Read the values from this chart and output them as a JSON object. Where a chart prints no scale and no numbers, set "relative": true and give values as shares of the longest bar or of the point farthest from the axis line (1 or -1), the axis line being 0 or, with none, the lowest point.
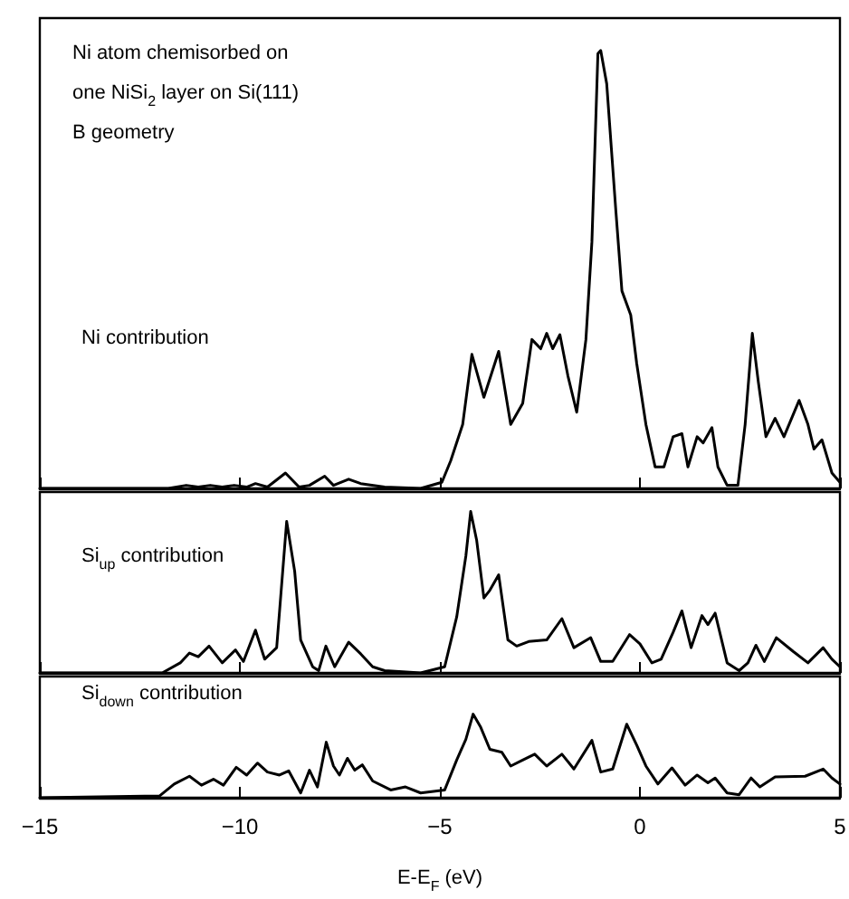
{
  "chart_data": [
    {
      "type": "line",
      "relative": true,
      "xlim": [
        -15,
        5
      ],
      "xticks": [
        -15,
        -10,
        -5,
        0,
        5
      ],
      "tick_labels": false,
      "grid": false,
      "legend": false,
      "marker": "none",
      "line_style": "solid",
      "annotations": [
        "Ni atom chemisorbed on",
        "one NiSi$_{2}$ layer on Si(111)",
        "B geometry"
      ],
      "series": [
        {
          "name": "Ni contribution",
          "color": "#000000",
          "x": [
            -15,
            -11.79,
            -11.34,
            -11.04,
            -10.74,
            -10.44,
            -10.14,
            -9.83,
            -9.61,
            -9.31,
            -8.86,
            -8.52,
            -8.26,
            -7.88,
            -7.66,
            -7.28,
            -6.98,
            -6.38,
            -5.48,
            -4.95,
            -4.73,
            -4.43,
            -4.2,
            -3.9,
            -3.53,
            -3.23,
            -2.93,
            -2.7,
            -2.48,
            -2.33,
            -2.18,
            -2.0,
            -1.8,
            -1.58,
            -1.35,
            -1.2,
            -1.05,
            -0.98,
            -0.83,
            -0.6,
            -0.45,
            -0.23,
            -0.08,
            0.15,
            0.38,
            0.6,
            0.83,
            1.05,
            1.2,
            1.43,
            1.58,
            1.8,
            1.95,
            2.18,
            2.45,
            2.63,
            2.81,
            2.96,
            3.15,
            3.38,
            3.6,
            3.98,
            4.2,
            4.35,
            4.55,
            4.8,
            5.0
          ],
          "values": [
            0,
            0,
            0.007,
            0.003,
            0.007,
            0.003,
            0.007,
            0.003,
            0.011,
            0.003,
            0.035,
            0.003,
            0.007,
            0.028,
            0.007,
            0.021,
            0.011,
            0.003,
            0,
            0.014,
            0.063,
            0.146,
            0.306,
            0.208,
            0.313,
            0.146,
            0.194,
            0.34,
            0.319,
            0.354,
            0.319,
            0.351,
            0.257,
            0.174,
            0.34,
            0.563,
            0.993,
            1,
            0.924,
            0.632,
            0.451,
            0.396,
            0.285,
            0.146,
            0.049,
            0.049,
            0.118,
            0.125,
            0.049,
            0.118,
            0.104,
            0.139,
            0.049,
            0.007,
            0.007,
            0.146,
            0.354,
            0.243,
            0.118,
            0.16,
            0.118,
            0.201,
            0.146,
            0.09,
            0.111,
            0.035,
            0.014
          ]
        }
      ]
    },
    {
      "type": "line",
      "relative": true,
      "xlim": [
        -15,
        5
      ],
      "xticks": [
        -15,
        -10,
        -5,
        0,
        5
      ],
      "tick_labels": false,
      "grid": false,
      "legend": false,
      "marker": "none",
      "line_style": "solid",
      "series": [
        {
          "name": "Si$_{up}$ contribution",
          "color": "#000000",
          "x": [
            -15,
            -11.94,
            -11.49,
            -11.26,
            -11.04,
            -10.77,
            -10.44,
            -10.11,
            -9.91,
            -9.61,
            -9.38,
            -9.08,
            -8.83,
            -8.63,
            -8.48,
            -8.18,
            -8.03,
            -7.85,
            -7.63,
            -7.28,
            -6.98,
            -6.68,
            -6.38,
            -5.48,
            -4.88,
            -4.58,
            -4.35,
            -4.23,
            -4.08,
            -3.9,
            -3.75,
            -3.53,
            -3.3,
            -3.08,
            -2.78,
            -2.33,
            -1.95,
            -1.65,
            -1.23,
            -0.98,
            -0.68,
            -0.26,
            0.0,
            0.3,
            0.53,
            0.83,
            1.05,
            1.28,
            1.55,
            1.7,
            1.88,
            2.18,
            2.48,
            2.7,
            2.9,
            3.11,
            3.41,
            3.83,
            4.2,
            4.58,
            4.8,
            5.0
          ],
          "values": [
            0,
            0,
            0.062,
            0.123,
            0.1,
            0.166,
            0.062,
            0.142,
            0.071,
            0.265,
            0.085,
            0.156,
            0.938,
            0.63,
            0.204,
            0.038,
            0.014,
            0.166,
            0.038,
            0.19,
            0.118,
            0.038,
            0.014,
            0,
            0.038,
            0.346,
            0.725,
            1,
            0.82,
            0.464,
            0.512,
            0.607,
            0.204,
            0.166,
            0.194,
            0.204,
            0.336,
            0.156,
            0.218,
            0.071,
            0.071,
            0.237,
            0.18,
            0.062,
            0.085,
            0.251,
            0.384,
            0.156,
            0.355,
            0.299,
            0.37,
            0.062,
            0.014,
            0.062,
            0.171,
            0.071,
            0.218,
            0.133,
            0.062,
            0.156,
            0.085,
            0.038
          ]
        }
      ]
    },
    {
      "type": "line",
      "relative": true,
      "xlim": [
        -15,
        5
      ],
      "xticks": [
        {
          "value": -15,
          "label": "−15"
        },
        {
          "value": -10,
          "label": "−10"
        },
        {
          "value": -5,
          "label": "−5"
        },
        0,
        5
      ],
      "tick_labels": "x",
      "grid": false,
      "legend": false,
      "marker": "none",
      "line_style": "solid",
      "xlabel": "E-E$_{F}$ (eV)",
      "series": [
        {
          "name": "Si$_{down}$ contribution",
          "color": "#000000",
          "x": [
            -15,
            -12.01,
            -11.64,
            -11.26,
            -10.96,
            -10.66,
            -10.41,
            -10.09,
            -9.83,
            -9.56,
            -9.31,
            -9.01,
            -8.78,
            -8.48,
            -8.26,
            -8.06,
            -7.84,
            -7.66,
            -7.51,
            -7.31,
            -7.13,
            -6.94,
            -6.68,
            -6.23,
            -5.86,
            -5.48,
            -4.88,
            -4.58,
            -4.35,
            -4.17,
            -3.98,
            -3.75,
            -3.45,
            -3.23,
            -2.93,
            -2.63,
            -2.33,
            -1.95,
            -1.65,
            -1.2,
            -0.98,
            -0.68,
            -0.33,
            -0.08,
            0.15,
            0.45,
            0.8,
            1.13,
            1.43,
            1.7,
            1.88,
            2.18,
            2.48,
            2.78,
            3.0,
            3.38,
            4.13,
            4.58,
            4.8,
            5.0
          ],
          "values": [
            0,
            0.021,
            0.164,
            0.257,
            0.15,
            0.221,
            0.15,
            0.364,
            0.271,
            0.414,
            0.307,
            0.271,
            0.321,
            0.057,
            0.329,
            0.129,
            0.664,
            0.379,
            0.271,
            0.471,
            0.329,
            0.393,
            0.2,
            0.093,
            0.129,
            0.057,
            0.093,
            0.45,
            0.7,
            1,
            0.843,
            0.579,
            0.543,
            0.379,
            0.45,
            0.521,
            0.379,
            0.521,
            0.343,
            0.686,
            0.307,
            0.343,
            0.879,
            0.629,
            0.379,
            0.164,
            0.357,
            0.15,
            0.271,
            0.179,
            0.236,
            0.057,
            0.036,
            0.236,
            0.129,
            0.25,
            0.257,
            0.343,
            0.236,
            0.164
          ]
        }
      ]
    }
  ]
}
